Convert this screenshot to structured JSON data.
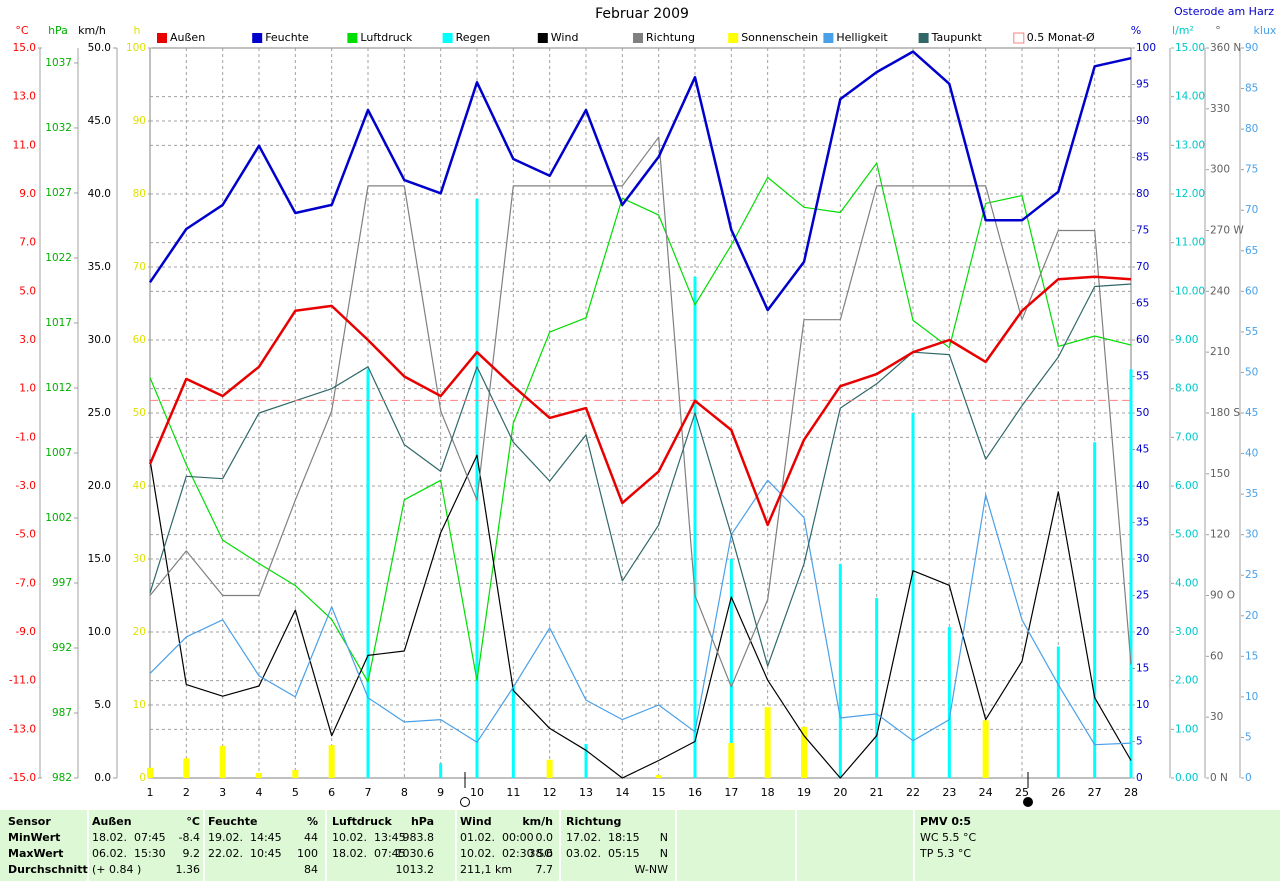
{
  "chart_data": {
    "type": "line",
    "title": "Februar 2009",
    "location": "Osterode am Harz",
    "categories": [
      "1",
      "2",
      "3",
      "4",
      "5",
      "6",
      "7",
      "8",
      "9",
      "10",
      "11",
      "12",
      "13",
      "14",
      "15",
      "16",
      "17",
      "18",
      "19",
      "20",
      "21",
      "22",
      "23",
      "24",
      "25",
      "26",
      "27",
      "28"
    ],
    "axes": [
      {
        "label": "°C",
        "side": "left",
        "color": "#ff0000",
        "grid": true,
        "lim": [
          -15,
          15
        ],
        "ticks": [
          {
            "value": 15,
            "label": "15.0"
          },
          {
            "value": 13,
            "label": "13.0"
          },
          {
            "value": 11,
            "label": "11.0"
          },
          {
            "value": 9,
            "label": "9.0"
          },
          {
            "value": 7,
            "label": "7.0"
          },
          {
            "value": 5,
            "label": "5.0"
          },
          {
            "value": 3,
            "label": "3.0"
          },
          {
            "value": 1,
            "label": "1.0"
          },
          {
            "value": -1,
            "label": "-1.0"
          },
          {
            "value": -3,
            "label": "-3.0"
          },
          {
            "value": -5,
            "label": "-5.0"
          },
          {
            "value": -7,
            "label": "-7.0"
          },
          {
            "value": -9,
            "label": "-9.0"
          },
          {
            "value": -11,
            "label": "-11.0"
          },
          {
            "value": -13,
            "label": "-13.0"
          },
          {
            "value": -15,
            "label": "-15.0"
          }
        ]
      },
      {
        "label": "hPa",
        "side": "left",
        "color": "#00b000",
        "grid": false,
        "lim": [
          982,
          1038.15
        ],
        "ticks": [
          1037,
          1032,
          1027,
          1022,
          1017,
          1012,
          1007,
          1002,
          997,
          992,
          987,
          982
        ]
      },
      {
        "label": "km/h",
        "side": "left",
        "color": "#000000",
        "grid": true,
        "lim": [
          0,
          50
        ],
        "ticks": [
          {
            "value": 50,
            "label": "50.0"
          },
          {
            "value": 45,
            "label": "45.0"
          },
          {
            "value": 40,
            "label": "40.0"
          },
          {
            "value": 35,
            "label": "35.0"
          },
          {
            "value": 30,
            "label": "30.0"
          },
          {
            "value": 25,
            "label": "25.0"
          },
          {
            "value": 20,
            "label": "20.0"
          },
          {
            "value": 15,
            "label": "15.0"
          },
          {
            "value": 10,
            "label": "10.0"
          },
          {
            "value": 5,
            "label": "5.0"
          },
          {
            "value": 0,
            "label": "0.0"
          }
        ]
      },
      {
        "label": "h",
        "side": "left",
        "color": "#e0e000",
        "grid": false,
        "lim": [
          0,
          100
        ],
        "ticks": [
          100,
          90,
          80,
          70,
          60,
          50,
          40,
          30,
          20,
          10,
          0
        ]
      },
      {
        "label": "%",
        "side": "right",
        "color": "#0000cc",
        "grid": false,
        "lim": [
          0,
          100
        ],
        "ticks": [
          100,
          95,
          90,
          85,
          80,
          75,
          70,
          65,
          60,
          55,
          50,
          45,
          40,
          35,
          30,
          25,
          20,
          15,
          10,
          5,
          0
        ]
      },
      {
        "label": "l/m²",
        "side": "right",
        "color": "#00c8c8",
        "grid": false,
        "lim": [
          0,
          15
        ],
        "ticks": [
          {
            "value": 15,
            "label": "15.00"
          },
          {
            "value": 14,
            "label": "14.00"
          },
          {
            "value": 13,
            "label": "13.00"
          },
          {
            "value": 12,
            "label": "12.00"
          },
          {
            "value": 11,
            "label": "11.00"
          },
          {
            "value": 10,
            "label": "10.00"
          },
          {
            "value": 9,
            "label": "9.00"
          },
          {
            "value": 8,
            "label": "8.00"
          },
          {
            "value": 7,
            "label": "7.00"
          },
          {
            "value": 6,
            "label": "6.00"
          },
          {
            "value": 5,
            "label": "5.00"
          },
          {
            "value": 4,
            "label": "4.00"
          },
          {
            "value": 3,
            "label": "3.00"
          },
          {
            "value": 2,
            "label": "2.00"
          },
          {
            "value": 1,
            "label": "1.00"
          },
          {
            "value": 0,
            "label": "0.00"
          }
        ]
      },
      {
        "label": "°",
        "side": "right",
        "color": "#606060",
        "grid": false,
        "lim": [
          0,
          360
        ],
        "ticks": [
          {
            "value": 360,
            "label": "360 N"
          },
          330,
          300,
          {
            "value": 270,
            "label": "270 W"
          },
          240,
          210,
          {
            "value": 180,
            "label": "180 S"
          },
          150,
          120,
          {
            "value": 90,
            "label": "90 O"
          },
          60,
          30,
          {
            "value": 0,
            "label": "0 N"
          }
        ]
      },
      {
        "label": "klux",
        "side": "right",
        "color": "#4aa0e8",
        "grid": false,
        "lim": [
          0,
          90
        ],
        "ticks": [
          90,
          85,
          80,
          75,
          70,
          65,
          60,
          55,
          50,
          45,
          40,
          35,
          30,
          25,
          20,
          15,
          10,
          5,
          0
        ]
      }
    ],
    "series": [
      {
        "name": "Außen",
        "color": "#e80000",
        "axis": "°C",
        "style": "line",
        "bold": true,
        "values": [
          -2.1,
          1.4,
          0.7,
          1.9,
          4.2,
          4.4,
          3.0,
          1.5,
          0.7,
          2.5,
          1.1,
          -0.2,
          0.2,
          -3.7,
          -2.4,
          0.5,
          -0.7,
          -4.6,
          -1.1,
          1.1,
          1.6,
          2.5,
          3.0,
          2.1,
          4.2,
          5.5,
          5.6,
          5.5
        ]
      },
      {
        "name": "Feuchte",
        "color": "#0000cc",
        "axis": "%",
        "style": "line",
        "bold": true,
        "values": [
          67.9,
          75.2,
          78.5,
          86.6,
          77.4,
          78.5,
          91.5,
          81.9,
          80.1,
          95.3,
          84.8,
          82.5,
          91.5,
          78.5,
          85.1,
          96.0,
          75.1,
          64.1,
          70.7,
          93.0,
          96.7,
          99.5,
          95.1,
          76.4,
          76.4,
          80.3,
          97.5,
          98.6
        ]
      },
      {
        "name": "Luftdruck",
        "color": "#00dd00",
        "axis": "hPa",
        "style": "line",
        "bold": false,
        "values": [
          1012.8,
          1006.1,
          1000.3,
          998.5,
          996.8,
          994.2,
          989.4,
          1003.4,
          1004.9,
          989.5,
          1009.3,
          1016.3,
          1017.4,
          1026.6,
          1025.3,
          1018.4,
          1023.0,
          1028.2,
          1025.9,
          1025.5,
          1029.3,
          1017.2,
          1015.1,
          1026.2,
          1026.8,
          1015.2,
          1016.0,
          1015.3
        ]
      },
      {
        "name": "Regen",
        "color": "#00ffff",
        "axis": "l/m²",
        "style": "bar",
        "bold": false,
        "values": [
          0,
          0,
          0,
          0,
          0,
          0,
          8.4,
          0,
          0.3,
          11.9,
          1.9,
          0,
          0.7,
          0,
          0,
          10.3,
          4.5,
          0,
          0,
          4.4,
          3.7,
          7.5,
          3.1,
          0,
          0,
          2.7,
          6.9,
          8.4
        ]
      },
      {
        "name": "Wind",
        "color": "#000000",
        "axis": "km/h",
        "style": "line",
        "bold": false,
        "values": [
          21.8,
          6.4,
          5.6,
          6.3,
          11.5,
          2.9,
          8.4,
          8.7,
          16.8,
          22.1,
          6.0,
          3.4,
          1.9,
          0.0,
          1.2,
          2.5,
          12.4,
          6.7,
          2.9,
          0.0,
          2.9,
          14.2,
          13.2,
          4.0,
          8.0,
          19.6,
          5.5,
          1.2
        ]
      },
      {
        "name": "Richtung",
        "color": "#808080",
        "axis": "°",
        "style": "line",
        "bold": false,
        "values": [
          90,
          112,
          90,
          90,
          137,
          181,
          292,
          292,
          181,
          137,
          292,
          292,
          292,
          292,
          316,
          90,
          45,
          88,
          226,
          226,
          292,
          292,
          292,
          292,
          226,
          270,
          270,
          56
        ]
      },
      {
        "name": "Sonnenschein",
        "color": "#ffff00",
        "axis": "h",
        "style": "bar",
        "bold": false,
        "values": [
          1.4,
          2.7,
          4.4,
          0.7,
          1.1,
          4.5,
          0,
          0,
          0,
          0,
          0,
          2.5,
          0,
          0,
          0.4,
          0,
          4.8,
          9.7,
          7.0,
          0,
          0,
          0,
          0,
          7.9,
          0,
          0,
          0,
          0
        ]
      },
      {
        "name": "Helligkeit",
        "color": "#4aa0e8",
        "axis": "klux",
        "style": "line",
        "bold": false,
        "values": [
          12.9,
          17.4,
          19.5,
          12.6,
          10.0,
          21.1,
          9.9,
          6.9,
          7.2,
          4.4,
          11.2,
          18.5,
          9.6,
          7.2,
          9.0,
          5.7,
          30.0,
          36.7,
          32.1,
          7.4,
          7.9,
          4.6,
          7.2,
          34.9,
          19.5,
          11.5,
          4.1,
          4.3
        ]
      },
      {
        "name": "Taupunkt",
        "color": "#306868",
        "axis": "°C",
        "style": "line",
        "bold": false,
        "values": [
          -7.4,
          -2.6,
          -2.7,
          0.0,
          0.5,
          1.0,
          1.9,
          -1.3,
          -2.4,
          1.9,
          -1.2,
          -2.8,
          -0.9,
          -6.9,
          -4.6,
          0.0,
          -5.0,
          -10.4,
          -6.2,
          0.2,
          1.2,
          2.5,
          2.4,
          -1.9,
          0.3,
          2.3,
          5.2,
          5.3
        ]
      }
    ],
    "reference": {
      "name": "0.5 Monat-Ø",
      "value": 0.52,
      "axis": "°C",
      "color": "#ff8080"
    }
  },
  "stats": {
    "header": {
      "label": "Sensor",
      "cells": [
        "Außen",
        "°C",
        "Feuchte",
        "%",
        "Luftdruck",
        "hPa",
        "Wind",
        "km/h",
        "Richtung",
        null,
        "PMV 0:5"
      ]
    },
    "rows": [
      {
        "label": "MinWert",
        "cells": [
          "18.02.  07:45",
          "-8.4",
          "19.02.  14:45",
          "44",
          "10.02.  13:45",
          "983.8",
          "01.02.  00:00",
          "0.0",
          "17.02.  18:15",
          "N",
          "WC 5.5 °C"
        ]
      },
      {
        "label": "MaxWert",
        "cells": [
          "06.02.  15:30",
          "9.2",
          "22.02.  10:45",
          "100",
          "18.02.  07:45",
          "1030.6",
          "10.02.  02:30 SO",
          "38.6",
          "03.02.  05:15",
          "N",
          "TP 5.3 °C"
        ]
      },
      {
        "label": "Durchschnitt",
        "cells": [
          "(+ 0.84 )",
          "1.36",
          null,
          "84",
          null,
          "1013.2",
          "211,1 km",
          "7.7",
          null,
          "W-NW",
          null
        ]
      }
    ]
  }
}
